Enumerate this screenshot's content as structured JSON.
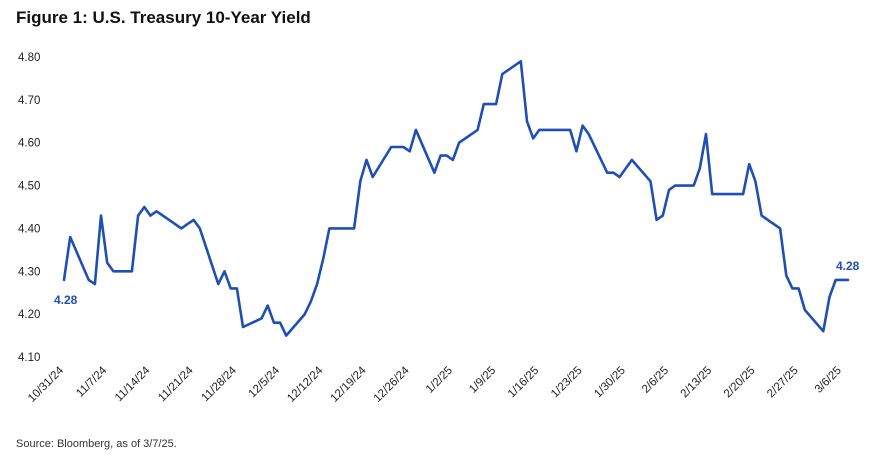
{
  "chart_data": {
    "type": "line",
    "title": "Figure 1: U.S. Treasury 10-Year Yield",
    "source": "Source: Bloomberg, as of 3/7/25.",
    "ylim": [
      4.1,
      4.8
    ],
    "y_ticks": [
      "4.10",
      "4.20",
      "4.30",
      "4.40",
      "4.50",
      "4.60",
      "4.70",
      "4.80"
    ],
    "x_ticks": [
      "10/31/24",
      "11/7/24",
      "11/14/24",
      "11/21/24",
      "11/28/24",
      "12/5/24",
      "12/12/24",
      "12/19/24",
      "12/26/24",
      "1/2/25",
      "1/9/25",
      "1/16/25",
      "1/23/25",
      "1/30/25",
      "2/6/25",
      "2/13/25",
      "2/20/25",
      "2/27/25",
      "3/6/25"
    ],
    "grid": false,
    "line_color": "#1f4fb5",
    "label_color": "#1f4fb5",
    "start_label": "4.28",
    "end_label": "4.28",
    "series": [
      {
        "x": [
          "10/31/24",
          "11/1/24",
          "11/4/24",
          "11/5/24",
          "11/6/24",
          "11/7/24",
          "11/8/24",
          "11/11/24",
          "11/12/24",
          "11/13/24",
          "11/14/24",
          "11/15/24",
          "11/18/24",
          "11/19/24",
          "11/20/24",
          "11/21/24",
          "11/22/24",
          "11/25/24",
          "11/26/24",
          "11/27/24",
          "11/28/24",
          "11/29/24",
          "12/2/24",
          "12/3/24",
          "12/4/24",
          "12/5/24",
          "12/6/24",
          "12/9/24",
          "12/10/24",
          "12/11/24",
          "12/12/24",
          "12/13/24",
          "12/16/24",
          "12/17/24",
          "12/18/24",
          "12/19/24",
          "12/20/24",
          "12/23/24",
          "12/24/24",
          "12/25/24",
          "12/26/24",
          "12/27/24",
          "12/30/24",
          "12/31/24",
          "1/1/25",
          "1/2/25",
          "1/3/25",
          "1/6/25",
          "1/7/25",
          "1/8/25",
          "1/9/25",
          "1/10/25",
          "1/13/25",
          "1/14/25",
          "1/15/25",
          "1/16/25",
          "1/17/25",
          "1/20/25",
          "1/21/25",
          "1/22/25",
          "1/23/25",
          "1/24/25",
          "1/27/25",
          "1/28/25",
          "1/29/25",
          "1/30/25",
          "1/31/25",
          "2/3/25",
          "2/4/25",
          "2/5/25",
          "2/6/25",
          "2/7/25",
          "2/10/25",
          "2/11/25",
          "2/12/25",
          "2/13/25",
          "2/14/25",
          "2/17/25",
          "2/18/25",
          "2/19/25",
          "2/20/25",
          "2/21/25",
          "2/24/25",
          "2/25/25",
          "2/26/25",
          "2/27/25",
          "2/28/25",
          "3/3/25",
          "3/4/25",
          "3/5/25",
          "3/6/25",
          "3/7/25"
        ],
        "values": [
          4.28,
          4.38,
          4.28,
          4.27,
          4.43,
          4.32,
          4.3,
          4.3,
          4.43,
          4.45,
          4.43,
          4.44,
          4.41,
          4.4,
          4.41,
          4.42,
          4.4,
          4.27,
          4.3,
          4.26,
          4.26,
          4.17,
          4.19,
          4.22,
          4.18,
          4.18,
          4.15,
          4.2,
          4.23,
          4.27,
          4.33,
          4.4,
          4.4,
          4.4,
          4.51,
          4.56,
          4.52,
          4.59,
          4.59,
          4.59,
          4.58,
          4.63,
          4.53,
          4.57,
          4.57,
          4.56,
          4.6,
          4.63,
          4.69,
          4.69,
          4.69,
          4.76,
          4.79,
          4.65,
          4.61,
          4.63,
          4.63,
          4.63,
          4.63,
          4.58,
          4.64,
          4.62,
          4.53,
          4.53,
          4.52,
          4.54,
          4.56,
          4.51,
          4.42,
          4.43,
          4.49,
          4.5,
          4.5,
          4.54,
          4.62,
          4.48,
          4.48,
          4.48,
          4.48,
          4.55,
          4.51,
          4.43,
          4.4,
          4.29,
          4.26,
          4.26,
          4.21,
          4.16,
          4.24,
          4.28,
          4.28,
          4.28
        ]
      }
    ]
  }
}
